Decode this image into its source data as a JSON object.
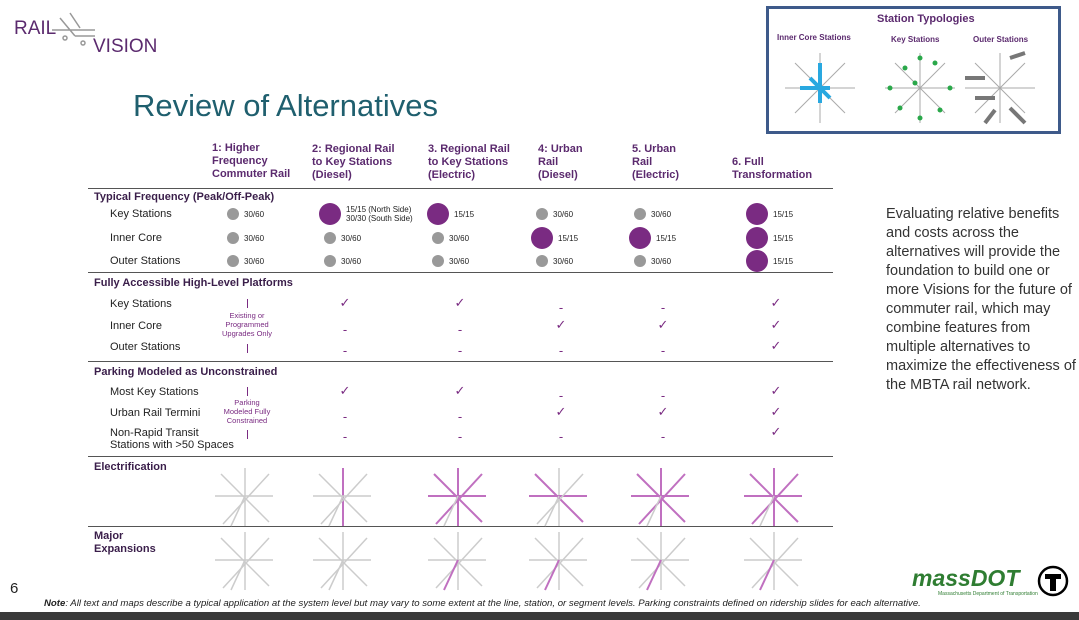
{
  "logo": {
    "rail": "RAIL",
    "vision": "VISION"
  },
  "title": "Review of Alternatives",
  "typologies": {
    "title": "Station Typologies",
    "labels": [
      "Inner Core Stations",
      "Key Stations",
      "Outer Stations"
    ]
  },
  "columns": [
    "1: Higher\nFrequency\nCommuter Rail",
    "2: Regional Rail\nto Key Stations\n(Diesel)",
    "3. Regional Rail\nto Key Stations\n(Electric)",
    "4: Urban\nRail\n(Diesel)",
    "5. Urban\nRail\n(Electric)",
    "6. Full\nTransformation"
  ],
  "sections": [
    {
      "title": "Typical Frequency (Peak/Off-Peak)",
      "rows": [
        {
          "label": "Key Stations",
          "cells": [
            "30/60",
            "15/15 (North Side)\n30/30 (South Side)",
            "15/15",
            "30/60",
            "30/60",
            "15/15"
          ]
        },
        {
          "label": "Inner Core",
          "cells": [
            "30/60",
            "30/60",
            "30/60",
            "15/15",
            "15/15",
            "15/15"
          ]
        },
        {
          "label": "Outer Stations",
          "cells": [
            "30/60",
            "30/60",
            "30/60",
            "30/60",
            "30/60",
            "15/15"
          ]
        }
      ]
    },
    {
      "title": "Fully Accessible High-Level Platforms",
      "rows": [
        {
          "label": "Key Stations",
          "cells": [
            null,
            "✓",
            "✓",
            "-",
            "-",
            "✓"
          ]
        },
        {
          "label": "Inner Core",
          "cells": [
            "Existing or\nProgrammed\nUpgrades Only",
            "-",
            "-",
            "✓",
            "✓",
            "✓"
          ]
        },
        {
          "label": "Outer Stations",
          "cells": [
            null,
            "-",
            "-",
            "-",
            "-",
            "✓"
          ]
        }
      ]
    },
    {
      "title": "Parking Modeled as Unconstrained",
      "rows": [
        {
          "label": "Most Key Stations",
          "cells": [
            null,
            "✓",
            "✓",
            "-",
            "-",
            "✓"
          ]
        },
        {
          "label": "Urban Rail Termini",
          "cells": [
            "Parking\nModeled Fully\nConstrained",
            "-",
            "-",
            "✓",
            "✓",
            "✓"
          ]
        },
        {
          "label": "Non-Rapid Transit\nStations with >50 Spaces",
          "cells": [
            null,
            "-",
            "-",
            "-",
            "-",
            "✓"
          ]
        }
      ]
    },
    {
      "title": "Electrification",
      "rows": []
    },
    {
      "title": "Major\nExpansions",
      "rows": []
    }
  ],
  "sidebar": "Evaluating relative benefits and costs across the alternatives will provide the foundation to build one or more Visions for the future of commuter rail, which may combine features from multiple alternatives to maximize the effectiveness of the MBTA rail network.",
  "page_number": "6",
  "massdot": {
    "name": "massDOT",
    "sub": "Massachusetts Department of Transportation"
  },
  "footnote": {
    "label": "Note",
    "text": ": All text and maps describe a typical application at the system level but may vary to some extent at the line, station, or segment levels. Parking constraints defined on ridership slides for each alternative."
  }
}
